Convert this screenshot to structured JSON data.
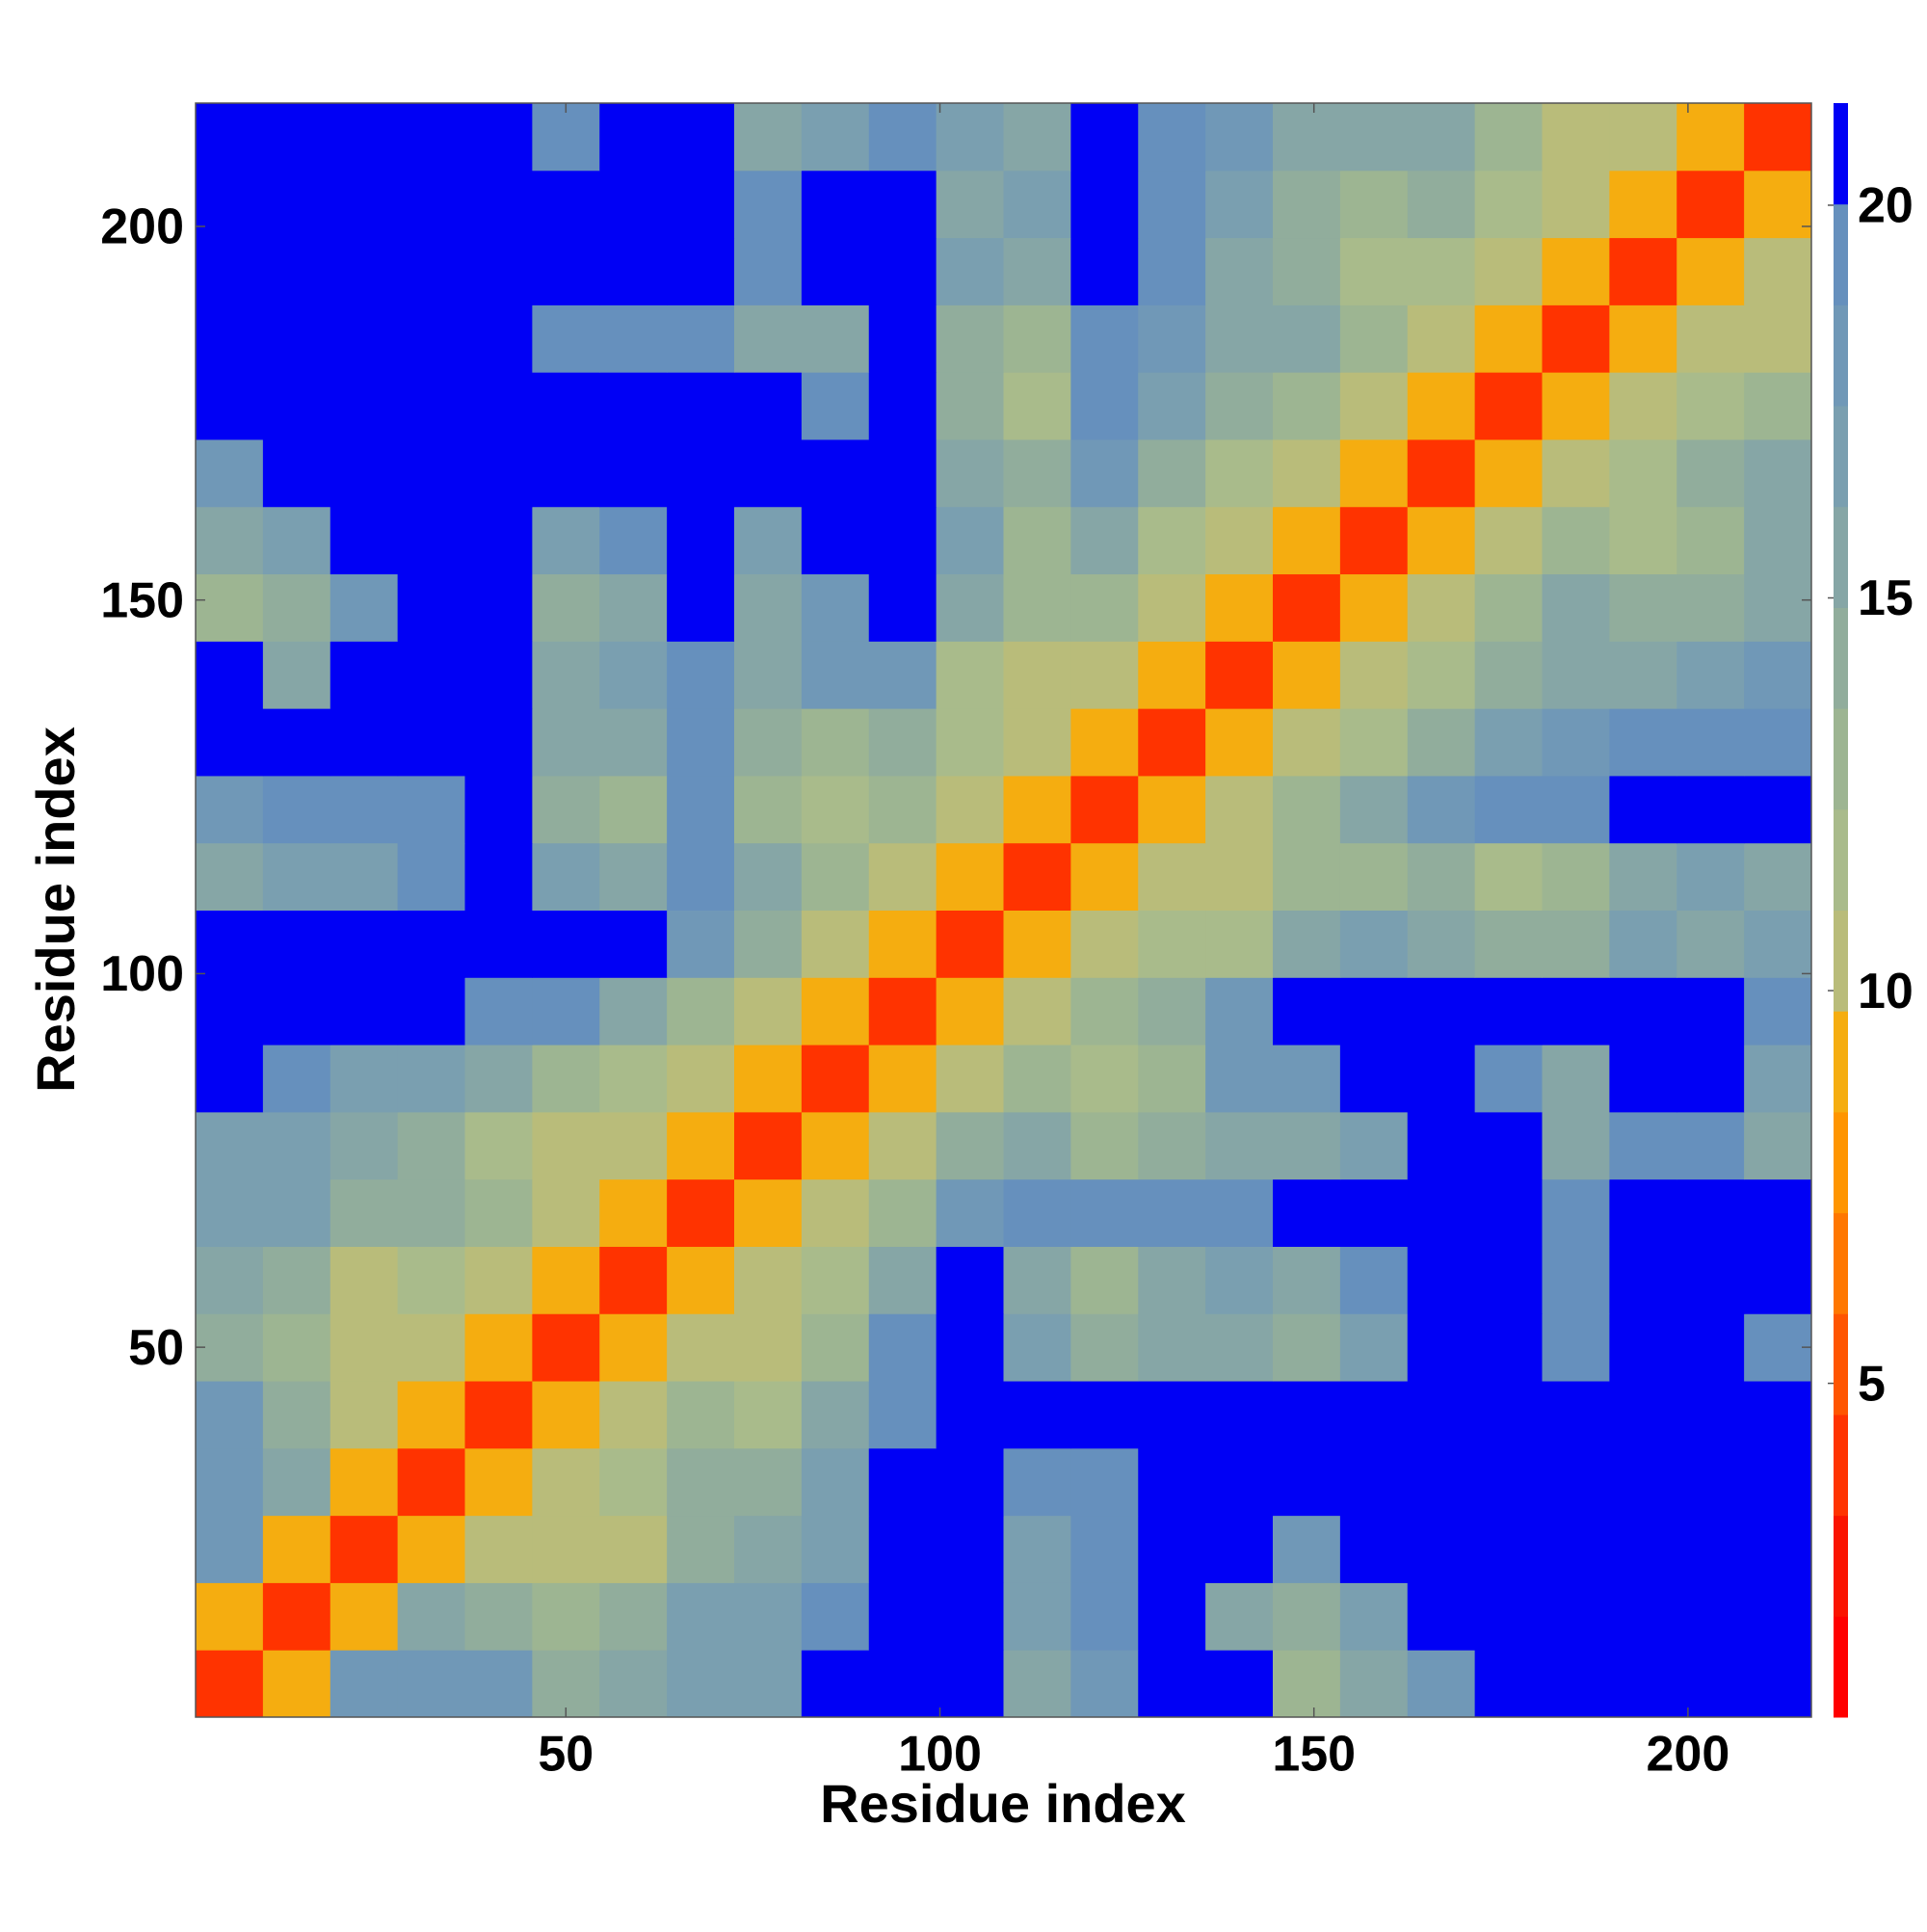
{
  "chart_data": {
    "type": "heatmap",
    "xlabel": "Residue index",
    "ylabel": "Residue index",
    "xbins": [
      0.5,
      9.5,
      18.5,
      27.5,
      36.5,
      45.5,
      54.5,
      63.5,
      72.5,
      81.5,
      90.5,
      99.5,
      108.5,
      117.5,
      126.5,
      135.5,
      144.5,
      153.5,
      162.5,
      171.5,
      180.5,
      189.5,
      198.5,
      207.5,
      216.5
    ],
    "ybins": [
      0.5,
      9.5,
      18.5,
      27.5,
      36.5,
      45.5,
      54.5,
      63.5,
      72.5,
      81.5,
      90.5,
      99.5,
      108.5,
      117.5,
      126.5,
      135.5,
      144.5,
      153.5,
      162.5,
      171.5,
      180.5,
      189.5,
      198.5,
      207.5,
      216.5
    ],
    "xlim": [
      0.5,
      216.5
    ],
    "ylim": [
      0.5,
      216.5
    ],
    "xticks": [
      50,
      100,
      150,
      200
    ],
    "yticks": [
      50,
      100,
      150,
      200
    ],
    "clim": [
      0.75,
      21.3
    ],
    "cticks": [
      5,
      10,
      15,
      20
    ],
    "colorscale": [
      "#ff0000",
      "#fa1400",
      "#ff3300",
      "#ff5500",
      "#ff7700",
      "#ff9500",
      "#f5ad10",
      "#b9bc7a",
      "#a9bb8b",
      "#9db592",
      "#91ad9c",
      "#86a6a6",
      "#7a9fb0",
      "#7098b7",
      "#6690bd",
      "#0000f5"
    ],
    "z": [
      [
        4,
        9,
        18,
        18,
        18,
        14,
        16,
        17,
        17,
        22,
        22,
        22,
        15,
        18,
        22,
        22,
        13,
        15,
        18,
        22,
        22,
        22,
        22,
        22
      ],
      [
        9,
        4,
        9,
        16,
        14,
        13,
        14,
        17,
        17,
        19,
        22,
        22,
        17,
        19,
        22,
        15,
        14,
        17,
        22,
        22,
        22,
        22,
        22,
        22
      ],
      [
        18,
        9,
        4,
        9,
        11,
        10,
        11,
        14,
        15,
        17,
        22,
        22,
        17,
        20,
        22,
        22,
        18,
        22,
        22,
        22,
        22,
        22,
        22,
        22
      ],
      [
        18,
        16,
        9,
        4,
        9,
        11,
        12,
        14,
        14,
        17,
        22,
        22,
        19,
        20,
        22,
        22,
        22,
        22,
        22,
        22,
        22,
        22,
        22,
        22
      ],
      [
        18,
        14,
        11,
        9,
        4,
        9,
        11,
        13,
        12,
        15,
        20,
        22,
        22,
        22,
        22,
        22,
        22,
        22,
        22,
        22,
        22,
        22,
        22,
        22
      ],
      [
        14,
        13,
        10,
        11,
        9,
        4,
        9,
        11,
        11,
        13,
        20,
        22,
        17,
        14,
        16,
        16,
        14,
        17,
        22,
        22,
        20,
        22,
        22,
        20
      ],
      [
        16,
        14,
        11,
        12,
        11,
        9,
        4,
        9,
        11,
        12,
        16,
        21,
        16,
        13,
        16,
        17,
        16,
        19,
        22,
        22,
        20,
        22,
        22,
        22
      ],
      [
        17,
        17,
        14,
        14,
        13,
        11,
        9,
        4,
        9,
        11,
        13,
        18,
        19,
        20,
        20,
        19,
        21,
        22,
        22,
        22,
        19,
        22,
        22,
        22
      ],
      [
        17,
        17,
        15,
        14,
        12,
        11,
        11,
        9,
        4,
        9,
        11,
        14,
        16,
        13,
        14,
        16,
        15,
        17,
        22,
        22,
        15,
        20,
        20,
        16
      ],
      [
        22,
        19,
        17,
        17,
        15,
        13,
        12,
        11,
        9,
        4,
        9,
        11,
        13,
        12,
        13,
        18,
        18,
        21,
        22,
        20,
        15,
        21,
        22,
        17
      ],
      [
        22,
        22,
        22,
        22,
        20,
        20,
        16,
        13,
        11,
        9,
        4,
        9,
        11,
        13,
        14,
        18,
        21,
        22,
        22,
        22,
        22,
        22,
        22,
        19
      ],
      [
        22,
        22,
        22,
        22,
        22,
        22,
        21,
        18,
        14,
        11,
        9,
        4,
        9,
        11,
        12,
        12,
        16,
        17,
        16,
        14,
        14,
        17,
        16,
        17
      ],
      [
        15,
        17,
        17,
        19,
        22,
        17,
        16,
        19,
        16,
        13,
        11,
        9,
        4,
        9,
        10,
        11,
        13,
        13,
        14,
        12,
        13,
        16,
        17,
        15
      ],
      [
        18,
        19,
        20,
        20,
        22,
        14,
        13,
        20,
        13,
        12,
        13,
        11,
        9,
        4,
        9,
        11,
        13,
        15,
        18,
        19,
        20,
        21,
        22,
        22
      ],
      [
        22,
        22,
        22,
        22,
        22,
        16,
        16,
        20,
        14,
        13,
        14,
        12,
        10,
        9,
        4,
        9,
        11,
        12,
        14,
        17,
        18,
        19,
        20,
        19
      ],
      [
        22,
        15,
        22,
        22,
        22,
        16,
        17,
        19,
        16,
        18,
        18,
        12,
        11,
        11,
        9,
        4,
        9,
        10,
        12,
        14,
        15,
        16,
        17,
        18
      ],
      [
        13,
        14,
        18,
        22,
        22,
        14,
        16,
        21,
        15,
        18,
        21,
        16,
        13,
        13,
        11,
        9,
        4,
        9,
        11,
        13,
        15,
        14,
        14,
        15
      ],
      [
        15,
        17,
        22,
        22,
        22,
        17,
        19,
        22,
        17,
        21,
        22,
        17,
        13,
        15,
        12,
        10,
        9,
        4,
        9,
        11,
        13,
        12,
        13,
        15
      ],
      [
        18,
        22,
        22,
        22,
        22,
        22,
        22,
        22,
        22,
        22,
        22,
        16,
        14,
        18,
        14,
        12,
        11,
        9,
        4,
        9,
        11,
        12,
        14,
        16
      ],
      [
        22,
        22,
        22,
        22,
        22,
        22,
        22,
        22,
        22,
        20,
        22,
        14,
        12,
        19,
        17,
        14,
        13,
        11,
        9,
        4,
        9,
        11,
        12,
        13
      ],
      [
        22,
        22,
        22,
        22,
        22,
        20,
        20,
        19,
        15,
        15,
        22,
        14,
        13,
        20,
        18,
        15,
        15,
        13,
        11,
        9,
        4,
        9,
        11,
        11
      ],
      [
        22,
        22,
        22,
        22,
        22,
        22,
        22,
        22,
        20,
        21,
        22,
        17,
        16,
        21,
        19,
        16,
        14,
        12,
        12,
        11,
        9,
        4,
        9,
        11
      ],
      [
        22,
        22,
        22,
        22,
        22,
        22,
        22,
        22,
        20,
        22,
        22,
        16,
        17,
        22,
        20,
        17,
        14,
        13,
        14,
        12,
        11,
        9,
        4,
        9
      ],
      [
        22,
        22,
        22,
        22,
        22,
        20,
        22,
        22,
        16,
        17,
        19,
        17,
        15,
        22,
        19,
        18,
        15,
        15,
        16,
        13,
        11,
        11,
        9,
        4
      ]
    ]
  }
}
